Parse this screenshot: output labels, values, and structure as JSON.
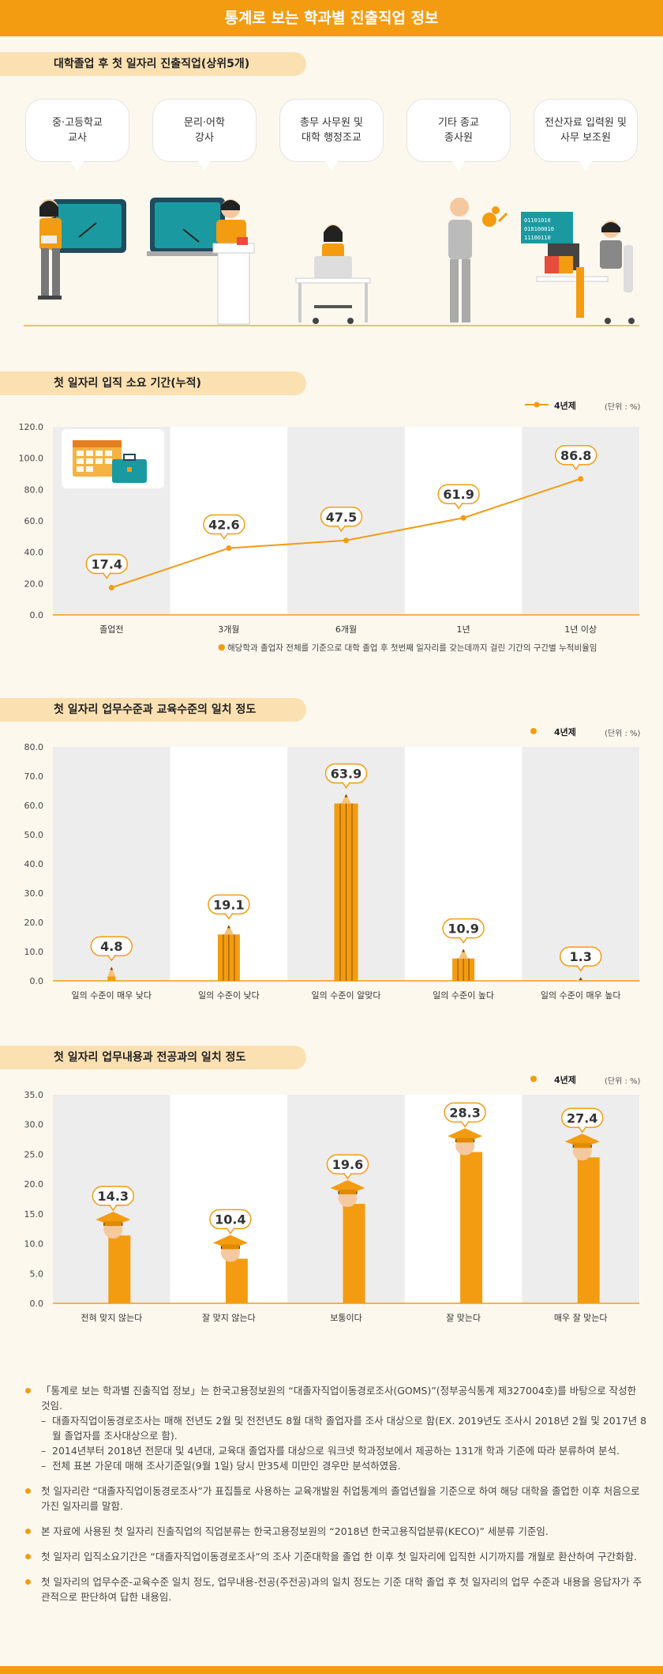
{
  "header": {
    "title": "통계로 보는 학과별 진출직업 정보"
  },
  "colors": {
    "accent": "#f39c12",
    "label_bg": "#fbe0b2",
    "band": "#ededed"
  },
  "section1": {
    "label": "대학졸업 후 첫 일자리 진출직업(상위5개)",
    "occupations": [
      "중·고등학교\n교사",
      "문리·어학\n강사",
      "총무 사무원 및\n대학 행정조교",
      "기타 종교\n종사원",
      "전산자료 입력원 및\n사무 보조원"
    ],
    "binary_text": [
      "01101010",
      "010100010",
      "11100110"
    ]
  },
  "section2": {
    "label": "첫 일자리 입직 소요 기간(누적)",
    "legend": "4년제",
    "unit": "(단위 : %)",
    "footnote": "해당학과 졸업자 전체를 기준으로 대학 졸업 후 첫번째 일자리를 갖는데까지 걸린 기간의 구간별 누적비율임",
    "icons": [
      "calendar-icon",
      "briefcase-icon"
    ]
  },
  "section3": {
    "label": "첫 일자리 업무수준과 교육수준의 일치 정도",
    "legend": "4년제",
    "unit": "(단위 : %)"
  },
  "section4": {
    "label": "첫 일자리 업무내용과 전공과의 일치 정도",
    "legend": "4년제",
    "unit": "(단위 : %)"
  },
  "chart_data": [
    {
      "type": "line",
      "categories": [
        "졸업전",
        "3개월",
        "6개월",
        "1년",
        "1년 이상"
      ],
      "series": [
        {
          "name": "4년제",
          "values": [
            17.4,
            42.6,
            47.5,
            61.9,
            86.8
          ]
        }
      ],
      "ylim": [
        0,
        120
      ],
      "yticks": [
        "0.0",
        "20.0",
        "40.0",
        "60.0",
        "80.0",
        "100.0",
        "120.0"
      ],
      "data_labels": [
        "17.4",
        "42.6",
        "47.5",
        "61.9",
        "86.8"
      ]
    },
    {
      "type": "bar",
      "categories": [
        "일의 수준이 매우 낮다",
        "일의 수준이 낮다",
        "일의 수준이 알맞다",
        "일의 수준이 높다",
        "일의 수준이 매우 높다"
      ],
      "series": [
        {
          "name": "4년제",
          "values": [
            4.8,
            19.1,
            63.9,
            10.9,
            1.3
          ]
        }
      ],
      "ylim": [
        0,
        80
      ],
      "yticks": [
        "0.0",
        "10.0",
        "20.0",
        "30.0",
        "40.0",
        "50.0",
        "60.0",
        "70.0",
        "80.0"
      ],
      "data_labels": [
        "4.8",
        "19.1",
        "63.9",
        "10.9",
        "1.3"
      ]
    },
    {
      "type": "bar",
      "categories": [
        "전혀 맞지 않는다",
        "잘 맞지 않는다",
        "보통이다",
        "잘 맞는다",
        "매우 잘 맞는다"
      ],
      "series": [
        {
          "name": "4년제",
          "values": [
            14.3,
            10.4,
            19.6,
            28.3,
            27.4
          ]
        }
      ],
      "ylim": [
        0,
        35
      ],
      "yticks": [
        "0.0",
        "5.0",
        "10.0",
        "15.0",
        "20.0",
        "25.0",
        "30.0",
        "35.0"
      ],
      "data_labels": [
        "14.3",
        "10.4",
        "19.6",
        "28.3",
        "27.4"
      ]
    }
  ],
  "notes": [
    {
      "text": "「통계로 보는 학과별 진출직업 정보」는 한국고용정보원의 “대졸자직업이동경로조사(GOMS)”(정부공식통계 제327004호)를 바탕으로 작성한 것임.",
      "subs": [
        "대졸자직업이동경로조사는 매해 전년도 2월 및 전전년도 8월 대학 졸업자를 조사 대상으로 함(EX. 2019년도 조사시 2018년 2월 및 2017년 8월 졸업자를 조사대상으로 함).",
        "2014년부터 2018년 전문대 및 4년대, 교육대 졸업자를 대상으로 워크넷 학과정보에서 제공하는 131개 학과 기준에 따라 분류하여 분석.",
        "전체 표본 가운데 매해 조사기준일(9월 1일) 당시 만35세 미만인 경우만 분석하였음."
      ]
    },
    {
      "text": "첫 일자리란 “대졸자직업이동경로조사”가 표집틀로 사용하는 교육개발원 취업통계의 졸업년월을 기준으로 하여 해당 대학을 졸업한 이후 처음으로 가진 일자리를 말함.",
      "subs": []
    },
    {
      "text": "본 자료에 사용된 첫 일자리 진출직업의 직업분류는 한국고용정보원의 “2018년 한국고용직업분류(KECO)” 세분류 기준임.",
      "subs": []
    },
    {
      "text": "첫 일자리 입직소요기간은 “대졸자직업이동경로조사”의 조사 기준대학을 졸업 한 이후 첫 일자리에 입직한 시기까지를 개월로 환산하여 구간화함.",
      "subs": []
    },
    {
      "text": "첫 일자리의 업무수준-교육수준 일치 정도, 업무내용-전공(주전공)과의 일치 정도는 기준 대학 졸업 후 첫 일자리의 업무 수준과 내용을 응답자가 주관적으로 판단하여 답한 내용임.",
      "subs": []
    }
  ]
}
